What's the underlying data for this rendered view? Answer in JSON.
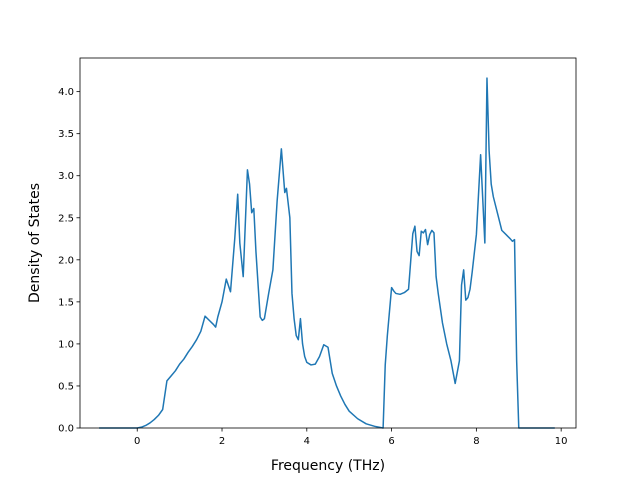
{
  "chart_data": {
    "type": "line",
    "title": "",
    "xlabel": "Frequency (THz)",
    "ylabel": "Density of States",
    "xlim": [
      -1.35,
      10.35
    ],
    "ylim": [
      0,
      4.4
    ],
    "xticks": [
      0,
      2,
      4,
      6,
      8,
      10
    ],
    "xtick_labels": [
      "0",
      "2",
      "4",
      "6",
      "8",
      "10"
    ],
    "yticks": [
      0.0,
      0.5,
      1.0,
      1.5,
      2.0,
      2.5,
      3.0,
      3.5,
      4.0
    ],
    "ytick_labels": [
      "0.0",
      "0.5",
      "1.0",
      "1.5",
      "2.0",
      "2.5",
      "3.0",
      "3.5",
      "4.0"
    ],
    "grid": false,
    "legend": "none",
    "series": [
      {
        "color": "#1f77b4",
        "x": [
          -0.9,
          -0.5,
          0.0,
          0.1,
          0.2,
          0.3,
          0.4,
          0.5,
          0.6,
          0.7,
          0.8,
          0.9,
          1.0,
          1.1,
          1.2,
          1.3,
          1.4,
          1.5,
          1.6,
          1.7,
          1.8,
          1.85,
          1.9,
          2.0,
          2.1,
          2.2,
          2.3,
          2.37,
          2.42,
          2.5,
          2.6,
          2.65,
          2.7,
          2.75,
          2.8,
          2.9,
          2.95,
          3.0,
          3.1,
          3.2,
          3.3,
          3.4,
          3.48,
          3.52,
          3.6,
          3.65,
          3.7,
          3.75,
          3.8,
          3.85,
          3.9,
          3.95,
          4.0,
          4.1,
          4.2,
          4.3,
          4.4,
          4.5,
          4.6,
          4.7,
          4.8,
          4.9,
          5.0,
          5.2,
          5.4,
          5.6,
          5.8,
          5.85,
          5.9,
          6.0,
          6.05,
          6.1,
          6.2,
          6.3,
          6.4,
          6.5,
          6.55,
          6.6,
          6.65,
          6.7,
          6.75,
          6.8,
          6.85,
          6.9,
          6.95,
          7.0,
          7.05,
          7.1,
          7.2,
          7.3,
          7.4,
          7.5,
          7.6,
          7.65,
          7.7,
          7.75,
          7.8,
          7.85,
          7.9,
          8.0,
          8.1,
          8.2,
          8.25,
          8.3,
          8.35,
          8.4,
          8.5,
          8.6,
          8.7,
          8.8,
          8.85,
          8.9,
          8.95,
          9.0,
          9.5,
          9.85
        ],
        "y": [
          0.0,
          0.0,
          0.0,
          0.01,
          0.03,
          0.06,
          0.1,
          0.15,
          0.22,
          0.56,
          0.62,
          0.68,
          0.76,
          0.82,
          0.9,
          0.97,
          1.05,
          1.15,
          1.33,
          1.28,
          1.23,
          1.2,
          1.32,
          1.5,
          1.77,
          1.62,
          2.25,
          2.78,
          2.2,
          1.8,
          3.07,
          2.9,
          2.56,
          2.61,
          2.1,
          1.32,
          1.28,
          1.3,
          1.6,
          1.88,
          2.7,
          3.32,
          2.8,
          2.85,
          2.5,
          1.6,
          1.3,
          1.1,
          1.05,
          1.3,
          1.0,
          0.85,
          0.78,
          0.75,
          0.76,
          0.85,
          0.99,
          0.96,
          0.65,
          0.5,
          0.38,
          0.28,
          0.2,
          0.11,
          0.05,
          0.02,
          0.0,
          0.75,
          1.1,
          1.67,
          1.63,
          1.6,
          1.59,
          1.61,
          1.65,
          2.31,
          2.4,
          2.1,
          2.05,
          2.34,
          2.32,
          2.36,
          2.18,
          2.3,
          2.35,
          2.32,
          1.8,
          1.6,
          1.25,
          1.0,
          0.8,
          0.53,
          0.8,
          1.7,
          1.88,
          1.52,
          1.55,
          1.65,
          1.85,
          2.3,
          3.25,
          2.2,
          4.16,
          3.3,
          2.9,
          2.75,
          2.55,
          2.35,
          2.3,
          2.25,
          2.22,
          2.24,
          0.8,
          0.0,
          0.0,
          0.0
        ]
      }
    ]
  }
}
